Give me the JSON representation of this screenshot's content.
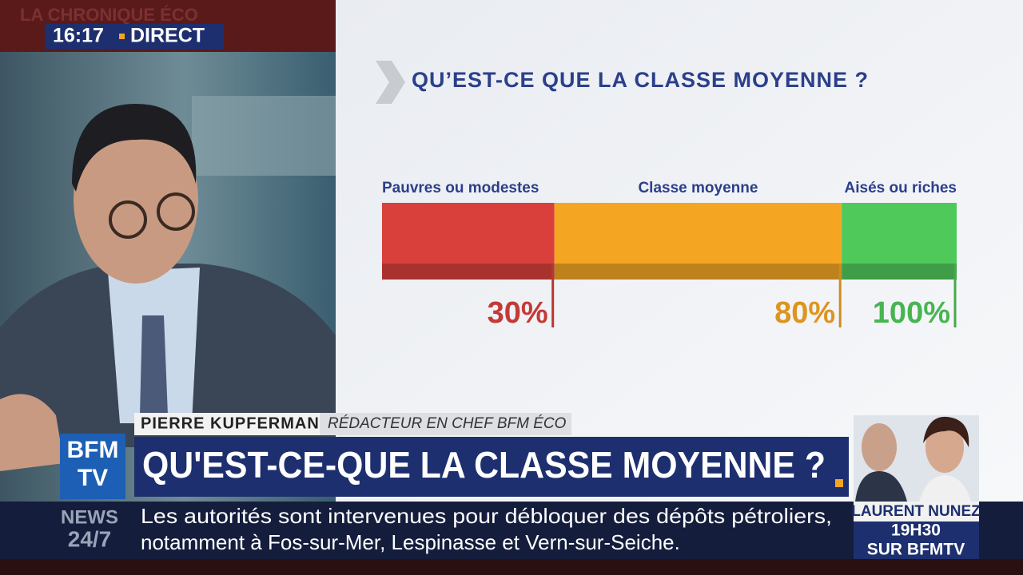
{
  "overlay": {
    "show": "LA CHRONIQUE ÉCO",
    "time": "16:17",
    "live": "DIRECT"
  },
  "graphic": {
    "title": "QU’EST-CE QUE LA CLASSE MOYENNE ?",
    "categories": [
      "Pauvres ou modestes",
      "Classe moyenne",
      "Aisés ou riches"
    ],
    "values": [
      30,
      80,
      100
    ],
    "value_labels": [
      "30%",
      "80%",
      "100%"
    ],
    "colors": [
      "#d9403c",
      "#f4a623",
      "#4fc95a"
    ],
    "xlim": [
      0,
      100
    ]
  },
  "lower_third": {
    "name": "PIERRE KUPFERMAN",
    "role": "RÉDACTEUR EN CHEF BFM ÉCO",
    "headline": "QU'EST-CE-QUE LA CLASSE MOYENNE ?"
  },
  "logo": {
    "line1": "BFM",
    "line2": "TV"
  },
  "ticker": {
    "label1": "NEWS",
    "label2": "24/7",
    "lines": [
      "Les autorités sont intervenues pour débloquer des dépôts pétroliers,",
      "notamment à Fos-sur-Mer, Lespinasse et Vern-sur-Seiche."
    ]
  },
  "promo": {
    "guest": "LAURENT NUNEZ",
    "time": "19H30",
    "channel": "SUR BFMTV"
  }
}
